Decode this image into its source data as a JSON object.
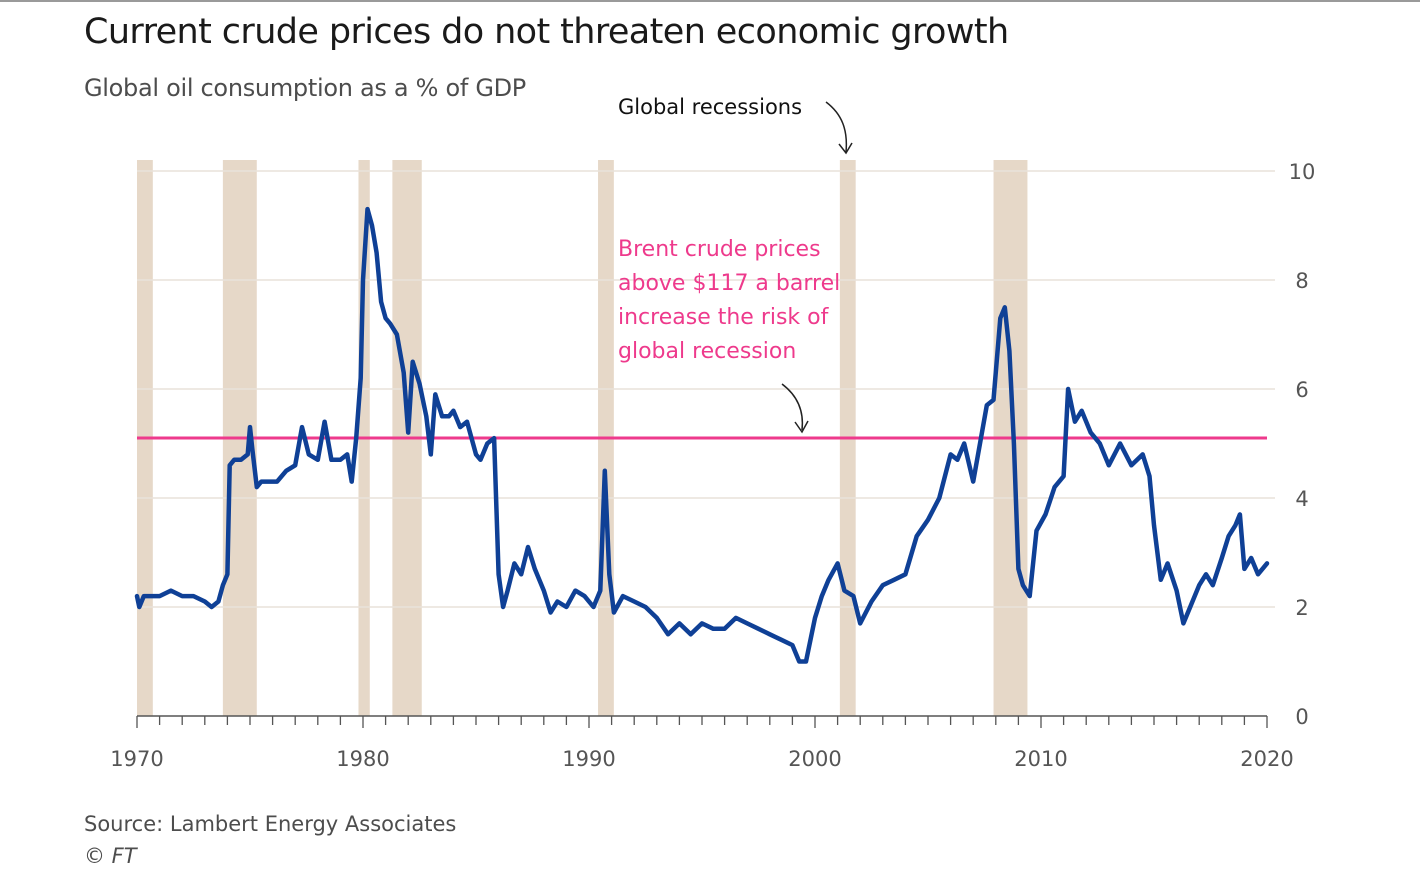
{
  "header": {
    "title": "Current crude prices do not threaten economic growth",
    "subtitle": "Global oil consumption as a % of GDP"
  },
  "footer": {
    "source": "Source: Lambert Energy Associates",
    "copyright": "© FT"
  },
  "colors": {
    "series": "#0f4096",
    "threshold": "#ee3a8c",
    "recession_band": "#e6d8c8",
    "grid": "#e9e2da",
    "axis": "#555555",
    "annotation_text": "#111111"
  },
  "chart_data": {
    "type": "line",
    "x_axis": {
      "min": 1970,
      "max": 2020,
      "ticks": [
        1970,
        1980,
        1990,
        2000,
        2010,
        2020
      ],
      "tick_labels": [
        "1970",
        "1980",
        "1990",
        "2000",
        "2010",
        "2020"
      ],
      "minor_ticks_per_year": true
    },
    "y_axis": {
      "min": 0,
      "max": 10,
      "ticks": [
        0,
        2,
        4,
        6,
        8,
        10
      ],
      "tick_labels": [
        "0",
        "2",
        "4",
        "6",
        "8",
        "10"
      ],
      "position": "right"
    },
    "grid": true,
    "recessions": [
      {
        "start": 1970.0,
        "end": 1970.7
      },
      {
        "start": 1973.8,
        "end": 1975.3
      },
      {
        "start": 1979.8,
        "end": 1980.3
      },
      {
        "start": 1981.3,
        "end": 1982.6
      },
      {
        "start": 1990.4,
        "end": 1991.1
      },
      {
        "start": 2001.1,
        "end": 2001.8
      },
      {
        "start": 2007.9,
        "end": 2009.4
      }
    ],
    "threshold": {
      "value": 5.1,
      "label_lines": [
        "Brent crude prices",
        "above $117 a barrel",
        "increase the risk of",
        "global recession"
      ]
    },
    "recession_label": "Global recessions",
    "series": [
      {
        "x": [
          1970.0,
          1970.1,
          1970.3,
          1970.6,
          1971.0,
          1971.5,
          1972.0,
          1972.5,
          1973.0,
          1973.3,
          1973.6,
          1973.8,
          1974.0,
          1974.1,
          1974.3,
          1974.6,
          1974.9,
          1975.0,
          1975.1,
          1975.3,
          1975.5,
          1975.8,
          1976.2,
          1976.6,
          1977.0,
          1977.3,
          1977.6,
          1978.0,
          1978.3,
          1978.6,
          1979.0,
          1979.3,
          1979.5,
          1979.7,
          1979.9,
          1980.0,
          1980.2,
          1980.4,
          1980.6,
          1980.8,
          1981.0,
          1981.2,
          1981.5,
          1981.8,
          1982.0,
          1982.2,
          1982.5,
          1982.8,
          1983.0,
          1983.2,
          1983.5,
          1983.8,
          1984.0,
          1984.3,
          1984.6,
          1985.0,
          1985.2,
          1985.5,
          1985.8,
          1986.0,
          1986.2,
          1986.4,
          1986.7,
          1987.0,
          1987.3,
          1987.6,
          1988.0,
          1988.3,
          1988.6,
          1989.0,
          1989.4,
          1989.8,
          1990.2,
          1990.5,
          1990.7,
          1990.9,
          1991.1,
          1991.5,
          1992.0,
          1992.5,
          1993.0,
          1993.5,
          1994.0,
          1994.5,
          1995.0,
          1995.5,
          1996.0,
          1996.5,
          1997.0,
          1997.5,
          1998.0,
          1998.5,
          1999.0,
          1999.3,
          1999.6,
          2000.0,
          2000.3,
          2000.6,
          2001.0,
          2001.3,
          2001.7,
          2002.0,
          2002.5,
          2003.0,
          2003.5,
          2004.0,
          2004.5,
          2005.0,
          2005.5,
          2006.0,
          2006.3,
          2006.6,
          2007.0,
          2007.3,
          2007.6,
          2007.9,
          2008.2,
          2008.4,
          2008.6,
          2008.8,
          2009.0,
          2009.2,
          2009.5,
          2009.8,
          2010.2,
          2010.6,
          2011.0,
          2011.2,
          2011.5,
          2011.8,
          2012.2,
          2012.6,
          2013.0,
          2013.5,
          2014.0,
          2014.5,
          2014.8,
          2015.0,
          2015.3,
          2015.6,
          2016.0,
          2016.3,
          2016.6,
          2017.0,
          2017.3,
          2017.6,
          2018.0,
          2018.3,
          2018.6,
          2018.8,
          2019.0,
          2019.3,
          2019.6,
          2020.0
        ],
        "y": [
          2.2,
          2.0,
          2.2,
          2.2,
          2.2,
          2.3,
          2.2,
          2.2,
          2.1,
          2.0,
          2.1,
          2.4,
          2.6,
          4.6,
          4.7,
          4.7,
          4.8,
          5.3,
          4.9,
          4.2,
          4.3,
          4.3,
          4.3,
          4.5,
          4.6,
          5.3,
          4.8,
          4.7,
          5.4,
          4.7,
          4.7,
          4.8,
          4.3,
          5.1,
          6.2,
          8.0,
          9.3,
          9.0,
          8.5,
          7.6,
          7.3,
          7.2,
          7.0,
          6.3,
          5.2,
          6.5,
          6.1,
          5.5,
          4.8,
          5.9,
          5.5,
          5.5,
          5.6,
          5.3,
          5.4,
          4.8,
          4.7,
          5.0,
          5.1,
          2.6,
          2.0,
          2.3,
          2.8,
          2.6,
          3.1,
          2.7,
          2.3,
          1.9,
          2.1,
          2.0,
          2.3,
          2.2,
          2.0,
          2.3,
          4.5,
          2.6,
          1.9,
          2.2,
          2.1,
          2.0,
          1.8,
          1.5,
          1.7,
          1.5,
          1.7,
          1.6,
          1.6,
          1.8,
          1.7,
          1.6,
          1.5,
          1.4,
          1.3,
          1.0,
          1.0,
          1.8,
          2.2,
          2.5,
          2.8,
          2.3,
          2.2,
          1.7,
          2.1,
          2.4,
          2.5,
          2.6,
          3.3,
          3.6,
          4.0,
          4.8,
          4.7,
          5.0,
          4.3,
          5.0,
          5.7,
          5.8,
          7.3,
          7.5,
          6.7,
          5.0,
          2.7,
          2.4,
          2.2,
          3.4,
          3.7,
          4.2,
          4.4,
          6.0,
          5.4,
          5.6,
          5.2,
          5.0,
          4.6,
          5.0,
          4.6,
          4.8,
          4.4,
          3.5,
          2.5,
          2.8,
          2.3,
          1.7,
          2.0,
          2.4,
          2.6,
          2.4,
          2.9,
          3.3,
          3.5,
          3.7,
          2.7,
          2.9,
          2.6,
          2.8
        ]
      }
    ]
  }
}
